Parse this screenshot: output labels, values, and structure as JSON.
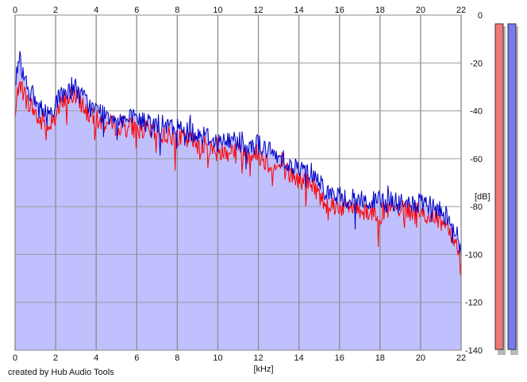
{
  "chart_data": {
    "type": "area",
    "title": "",
    "xlabel": "[kHz]",
    "ylabel": "[dB]",
    "xlim": [
      0,
      22
    ],
    "ylim": [
      -140,
      0
    ],
    "x_ticks": [
      "0",
      "2",
      "4",
      "6",
      "8",
      "10",
      "12",
      "14",
      "16",
      "18",
      "20",
      "22"
    ],
    "y_ticks": [
      "0",
      "-20",
      "-40",
      "-60",
      "-80",
      "-100",
      "-120",
      "-140"
    ],
    "grid": true,
    "fill_color": "#c0c0ff",
    "series": [
      {
        "color": "#ff0000",
        "x": [
          0,
          0.2,
          0.4,
          0.6,
          0.8,
          1.0,
          1.2,
          1.4,
          1.6,
          1.8,
          2.0,
          2.2,
          2.4,
          2.6,
          2.8,
          3.0,
          3.2,
          3.4,
          3.6,
          3.8,
          4.0,
          4.4,
          4.8,
          5.2,
          5.6,
          6.0,
          6.4,
          6.8,
          7.2,
          7.6,
          8.0,
          8.4,
          8.8,
          9.2,
          9.6,
          10.0,
          10.4,
          10.8,
          11.2,
          11.6,
          12.0,
          12.4,
          12.8,
          13.2,
          13.6,
          14.0,
          14.4,
          14.8,
          15.2,
          15.6,
          16.0,
          16.5,
          17.0,
          17.5,
          18.0,
          18.5,
          19.0,
          19.5,
          20.0,
          20.5,
          21.0,
          21.4,
          21.8,
          22.0
        ],
        "y": [
          -44,
          -26,
          -32,
          -36,
          -38,
          -41,
          -45,
          -44,
          -48,
          -43,
          -40,
          -39,
          -37,
          -35,
          -33,
          -35,
          -36,
          -38,
          -41,
          -43,
          -44,
          -45,
          -46,
          -46,
          -47,
          -47,
          -48,
          -49,
          -50,
          -50,
          -51,
          -52,
          -53,
          -54,
          -56,
          -57,
          -57,
          -56,
          -57,
          -58,
          -58,
          -61,
          -64,
          -63,
          -67,
          -69,
          -70,
          -72,
          -78,
          -79,
          -80,
          -80,
          -81,
          -82,
          -83,
          -81,
          -82,
          -82,
          -83,
          -84,
          -86,
          -88,
          -96,
          -106
        ]
      },
      {
        "color": "#0000c8",
        "x": [
          0,
          0.2,
          0.4,
          0.6,
          0.8,
          1.0,
          1.2,
          1.4,
          1.6,
          1.8,
          2.0,
          2.2,
          2.4,
          2.6,
          2.8,
          3.0,
          3.2,
          3.4,
          3.6,
          3.8,
          4.0,
          4.4,
          4.8,
          5.2,
          5.6,
          6.0,
          6.4,
          6.8,
          7.2,
          7.6,
          8.0,
          8.4,
          8.8,
          9.2,
          9.6,
          10.0,
          10.4,
          10.8,
          11.2,
          11.6,
          12.0,
          12.4,
          12.8,
          13.2,
          13.6,
          14.0,
          14.4,
          14.8,
          15.2,
          15.6,
          16.0,
          16.5,
          17.0,
          17.5,
          18.0,
          18.5,
          19.0,
          19.5,
          20.0,
          20.5,
          21.0,
          21.4,
          21.8,
          22.0
        ],
        "y": [
          -28,
          -17,
          -24,
          -29,
          -33,
          -36,
          -39,
          -40,
          -42,
          -40,
          -36,
          -35,
          -33,
          -31,
          -29,
          -31,
          -33,
          -35,
          -37,
          -39,
          -40,
          -41,
          -42,
          -43,
          -44,
          -43,
          -45,
          -45,
          -46,
          -47,
          -47,
          -48,
          -49,
          -50,
          -51,
          -53,
          -53,
          -52,
          -52,
          -54,
          -54,
          -56,
          -59,
          -59,
          -63,
          -64,
          -65,
          -66,
          -72,
          -75,
          -76,
          -77,
          -77,
          -78,
          -78,
          -78,
          -79,
          -79,
          -79,
          -80,
          -82,
          -84,
          -92,
          -100
        ]
      }
    ]
  },
  "level_meters": [
    {
      "color": "#f07878",
      "level_db": -140
    },
    {
      "color": "#7878f0",
      "level_db": -140
    }
  ],
  "footer": {
    "credit": "created by Hub Audio Tools"
  }
}
